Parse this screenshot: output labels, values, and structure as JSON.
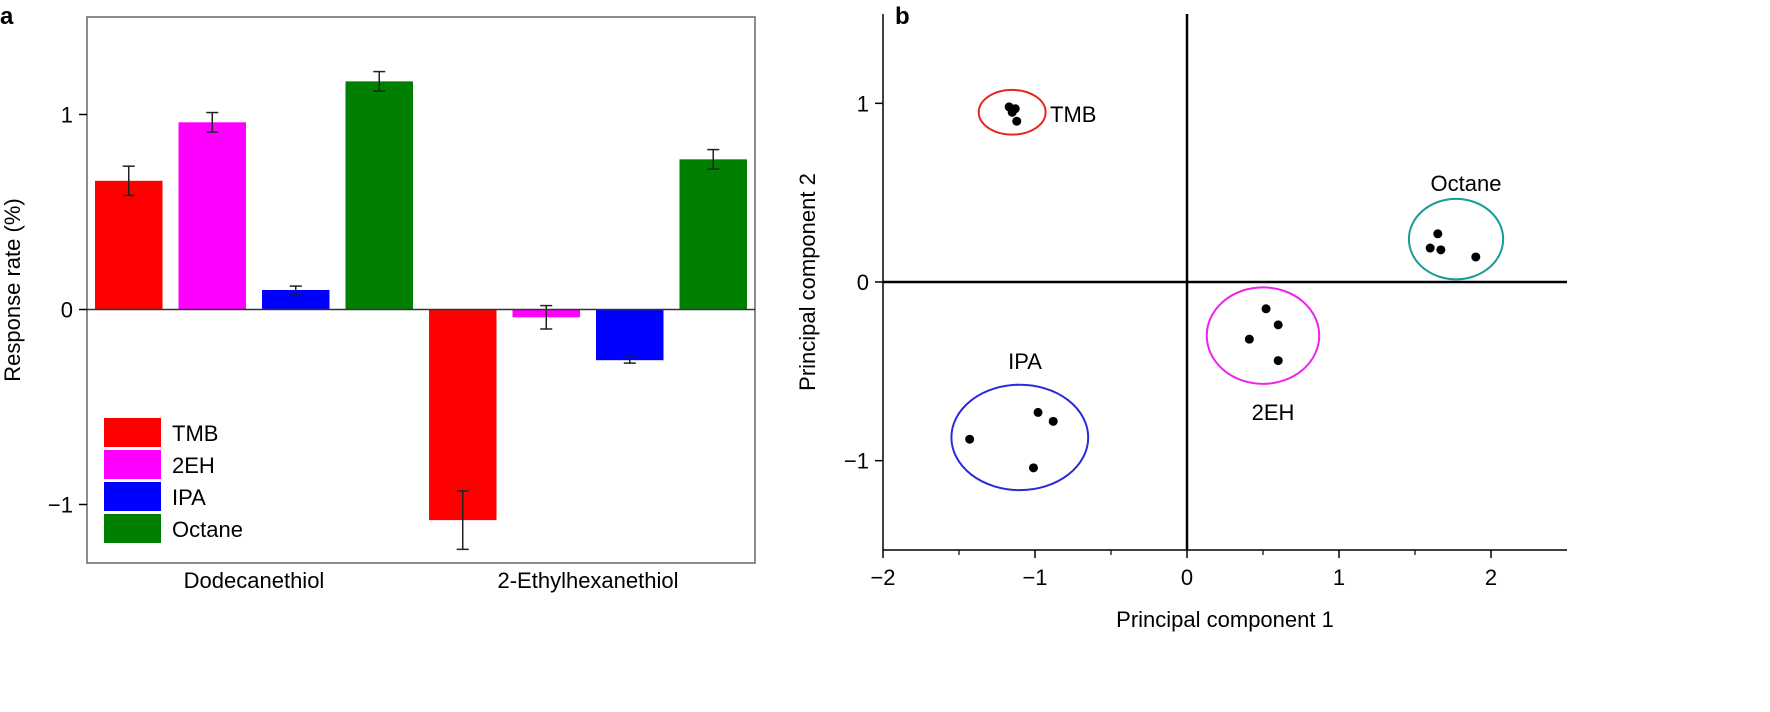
{
  "chart_data": [
    {
      "panel": "a",
      "type": "bar",
      "title": "",
      "xlabel": "",
      "ylabel": "Response rate (%)",
      "ylim": [
        -1.3,
        1.5
      ],
      "yticks": [
        {
          "value": -1,
          "label": "−1"
        },
        {
          "value": 0,
          "label": "0"
        },
        {
          "value": 1,
          "label": "1"
        }
      ],
      "categories": [
        "Dodecanethiol",
        "2-Ethylhexanethiol"
      ],
      "series": [
        {
          "name": "TMB",
          "color": "#ff0000",
          "values": [
            0.66,
            -1.08
          ],
          "errors": [
            0.075,
            0.15
          ]
        },
        {
          "name": "2EH",
          "color": "#ff00ff",
          "values": [
            0.96,
            -0.04
          ],
          "errors": [
            0.05,
            0.06
          ]
        },
        {
          "name": "IPA",
          "color": "#0000ff",
          "values": [
            0.1,
            -0.26
          ],
          "errors": [
            0.02,
            0.015
          ]
        },
        {
          "name": "Octane",
          "color": "#008000",
          "values": [
            1.17,
            0.77
          ],
          "errors": [
            0.05,
            0.05
          ]
        }
      ],
      "legend_position": "bottom-left",
      "grid": false
    },
    {
      "panel": "b",
      "type": "scatter",
      "title": "",
      "xlabel": "Principal component 1",
      "ylabel": "Principal component 2",
      "xlim": [
        -2,
        2.5
      ],
      "ylim": [
        -1.5,
        1.5
      ],
      "xticks": [
        {
          "value": -2,
          "label": "−2"
        },
        {
          "value": -1,
          "label": "−1"
        },
        {
          "value": 0,
          "label": "0"
        },
        {
          "value": 1,
          "label": "1"
        },
        {
          "value": 2,
          "label": "2"
        }
      ],
      "yticks": [
        {
          "value": -1,
          "label": "−1"
        },
        {
          "value": 0,
          "label": "0"
        },
        {
          "value": 1,
          "label": "1"
        }
      ],
      "minor_ticks": [
        -1.5,
        -0.5,
        0.5,
        1.5
      ],
      "grid": false,
      "series": [
        {
          "name": "TMB",
          "color": "#e8261f",
          "points": [
            [
              -1.17,
              0.98
            ],
            [
              -1.15,
              0.95
            ],
            [
              -1.13,
              0.97
            ],
            [
              -1.12,
              0.9
            ]
          ],
          "ellipse": {
            "cx": -1.15,
            "cy": 0.95,
            "rx": 0.22,
            "ry": 0.125
          }
        },
        {
          "name": "Octane",
          "color": "#1a9a99",
          "points": [
            [
              1.65,
              0.27
            ],
            [
              1.6,
              0.19
            ],
            [
              1.67,
              0.18
            ],
            [
              1.9,
              0.14
            ]
          ],
          "ellipse": {
            "cx": 1.77,
            "cy": 0.24,
            "rx": 0.31,
            "ry": 0.225
          }
        },
        {
          "name": "2EH",
          "color": "#ee22ee",
          "points": [
            [
              0.52,
              -0.15
            ],
            [
              0.6,
              -0.24
            ],
            [
              0.41,
              -0.32
            ],
            [
              0.6,
              -0.44
            ]
          ],
          "ellipse": {
            "cx": 0.5,
            "cy": -0.3,
            "rx": 0.37,
            "ry": 0.27
          }
        },
        {
          "name": "IPA",
          "color": "#2a2ad9",
          "points": [
            [
              -0.98,
              -0.73
            ],
            [
              -0.88,
              -0.78
            ],
            [
              -1.43,
              -0.88
            ],
            [
              -1.01,
              -1.04
            ]
          ],
          "ellipse": {
            "cx": -1.1,
            "cy": -0.87,
            "rx": 0.45,
            "ry": 0.295
          }
        }
      ]
    }
  ]
}
